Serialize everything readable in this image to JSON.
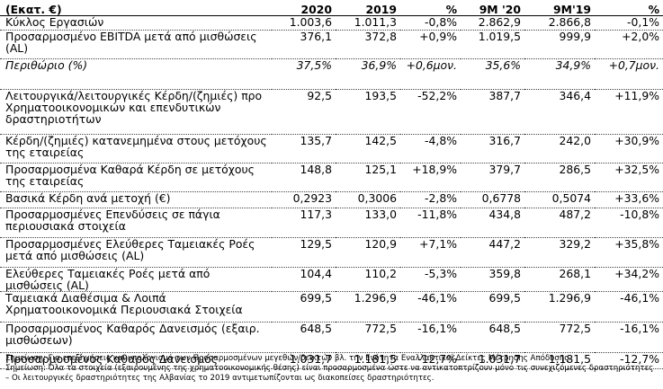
{
  "header": {
    "label": "(Εκατ. €)",
    "col1": "2020",
    "col2": "2019",
    "col3": "%",
    "col4": "9M '20",
    "col5": "9M'19",
    "col6": "%"
  },
  "rows": [
    {
      "label": "Κύκλος Εργασιών",
      "v1": "1.003,6",
      "v2": "1.011,3",
      "v3": "-0,8%",
      "v4": "2.862,9",
      "v5": "2.866,8",
      "v6": "-0,1%"
    },
    {
      "label": "Προσαρμοσμένο EBITDA μετά από μισθώσεις (AL)",
      "v1": "376,1",
      "v2": "372,8",
      "v3": "+0,9%",
      "v4": "1.019,5",
      "v5": "999,9",
      "v6": "+2,0%"
    },
    {
      "label": "Περιθώριο (%)",
      "v1": "37,5%",
      "v2": "36,9%",
      "v3": "+0,6μον.",
      "v4": "35,6%",
      "v5": "34,9%",
      "v6": "+0,7μον."
    },
    {
      "label": "Λειτουργικά/λειτουργικές Κέρδη/(ζημιές) προ Χρηματοοικονομικών και επενδυτικών δραστηριοτήτων",
      "v1": "92,5",
      "v2": "193,5",
      "v3": "-52,2%",
      "v4": "387,7",
      "v5": "346,4",
      "v6": "+11,9%"
    },
    {
      "label": "Κέρδη/(ζημιές) κατανεμημένα στους μετόχους της εταιρείας",
      "v1": "135,7",
      "v2": "142,5",
      "v3": "-4,8%",
      "v4": "316,7",
      "v5": "242,0",
      "v6": "+30,9%"
    },
    {
      "label": "Προσαρμοσμένα Καθαρά Κέρδη σε μετόχους της εταιρείας",
      "v1": "148,8",
      "v2": "125,1",
      "v3": "+18,9%",
      "v4": "379,7",
      "v5": "286,5",
      "v6": "+32,5%"
    },
    {
      "label": "Βασικά Κέρδη ανά μετοχή (€)",
      "v1": "0,2923",
      "v2": "0,3006",
      "v3": "-2,8%",
      "v4": "0,6778",
      "v5": "0,5074",
      "v6": "+33,6%"
    },
    {
      "label": "Προσαρμοσμένες Επενδύσεις σε πάγια περιουσιακά στοιχεία",
      "v1": "117,3",
      "v2": "133,0",
      "v3": "-11,8%",
      "v4": "434,8",
      "v5": "487,2",
      "v6": "-10,8%"
    },
    {
      "label": "Προσαρμοσμένες  Ελεύθερες Ταμειακές Ροές μετά από μισθώσεις (AL)",
      "v1": "129,5",
      "v2": "120,9",
      "v3": "+7,1%",
      "v4": "447,2",
      "v5": "329,2",
      "v6": "+35,8%"
    },
    {
      "label": "Ελεύθερες Ταμειακές Ροές μετά από μισθώσεις (AL)",
      "v1": "104,4",
      "v2": "110,2",
      "v3": "-5,3%",
      "v4": "359,8",
      "v5": "268,1",
      "v6": "+34,2%"
    },
    {
      "label": "Ταμειακά Διαθέσιμα & Λοιπά Χρηματοοικονομικά Περιουσιακά Στοιχεία",
      "v1": "699,5",
      "v2": "1.296,9",
      "v3": "-46,1%",
      "v4": "699,5",
      "v5": "1.296,9",
      "v6": "-46,1%"
    },
    {
      "label": "Προσαρμοσμένος Καθαρός Δανεισμός (εξαιρ. μισθώσεων)",
      "v1": "648,5",
      "v2": "772,5",
      "v3": "-16,1%",
      "v4": "648,5",
      "v5": "772,5",
      "v6": "-16,1%"
    },
    {
      "label": "Προσαρμοσμένος Καθαρός Δανεισμός",
      "v1": "1.031,7",
      "v2": "1.181,5",
      "v3": "-12,7%",
      "v4": "1.031,7",
      "v5": "1.181,5",
      "v6": "-12,7%"
    }
  ],
  "notes": [
    "Σημείωση: Για επεξηγήσεις και υπολογισμό των Προσαρμοσμένων μεγεθών/δεικτών βλ. την Ενότητα Εναλλακτικοί Δείκτες Μέτρησης Απόδοσης.",
    "Σημείωση: Όλα τα στοιχεία (εξαιρουμένης της χρηματοοικονομικής θέσης) είναι προσαρμοσμένα ώστε να αντικατοπτρίζουν μόνο τις συνεχιζόμενες δραστηριότητες",
    "– Οι λειτουργικές δραστηριότητες της Αλβανίας το 2019 αντιμετωπίζονται ως διακοπείσες δραστηριότητες."
  ]
}
